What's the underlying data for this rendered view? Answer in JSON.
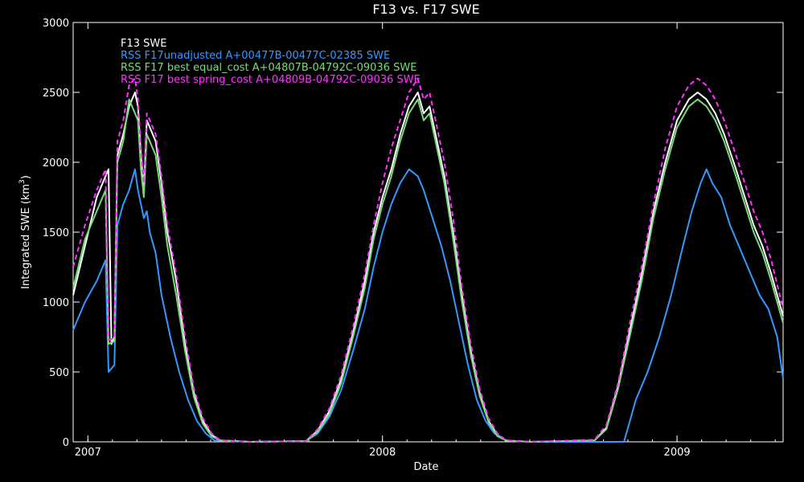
{
  "chart_data": {
    "type": "line",
    "title": "F13 vs. F17 SWE",
    "xlabel": "Date",
    "ylabel_main": "Integrated SWE (km",
    "ylabel_sup": "3",
    "ylabel_close": ")",
    "xlim": [
      2006.95,
      2009.36
    ],
    "ylim": [
      0,
      3000
    ],
    "x_ticks": [
      2007,
      2008,
      2009
    ],
    "x_tick_labels": [
      "2007",
      "2008",
      "2009"
    ],
    "y_ticks": [
      0,
      500,
      1000,
      1500,
      2000,
      2500,
      3000
    ],
    "y_tick_labels": [
      "0",
      "500",
      "1000",
      "1500",
      "2000",
      "2500",
      "3000"
    ],
    "grid": false,
    "legend_position": "top-left",
    "series": [
      {
        "name": "F13 SWE",
        "color": "#ffffff",
        "dashed": false,
        "points": [
          [
            2006.95,
            1050
          ],
          [
            2006.99,
            1400
          ],
          [
            2007.03,
            1750
          ],
          [
            2007.06,
            1900
          ],
          [
            2007.07,
            1950
          ],
          [
            2007.08,
            700
          ],
          [
            2007.09,
            750
          ],
          [
            2007.1,
            2050
          ],
          [
            2007.12,
            2200
          ],
          [
            2007.14,
            2400
          ],
          [
            2007.16,
            2500
          ],
          [
            2007.17,
            2400
          ],
          [
            2007.18,
            2050
          ],
          [
            2007.19,
            1800
          ],
          [
            2007.2,
            2300
          ],
          [
            2007.21,
            2250
          ],
          [
            2007.23,
            2150
          ],
          [
            2007.25,
            1850
          ],
          [
            2007.27,
            1500
          ],
          [
            2007.3,
            1150
          ],
          [
            2007.33,
            700
          ],
          [
            2007.36,
            350
          ],
          [
            2007.39,
            150
          ],
          [
            2007.42,
            50
          ],
          [
            2007.45,
            10
          ],
          [
            2007.55,
            0
          ],
          [
            2007.74,
            5
          ],
          [
            2007.78,
            80
          ],
          [
            2007.82,
            220
          ],
          [
            2007.86,
            450
          ],
          [
            2007.9,
            780
          ],
          [
            2007.94,
            1150
          ],
          [
            2007.97,
            1500
          ],
          [
            2008.0,
            1750
          ],
          [
            2008.03,
            1950
          ],
          [
            2008.06,
            2200
          ],
          [
            2008.09,
            2400
          ],
          [
            2008.12,
            2500
          ],
          [
            2008.14,
            2350
          ],
          [
            2008.16,
            2400
          ],
          [
            2008.18,
            2200
          ],
          [
            2008.21,
            1900
          ],
          [
            2008.24,
            1500
          ],
          [
            2008.27,
            1050
          ],
          [
            2008.3,
            650
          ],
          [
            2008.33,
            350
          ],
          [
            2008.36,
            150
          ],
          [
            2008.39,
            50
          ],
          [
            2008.42,
            10
          ],
          [
            2008.5,
            0
          ],
          [
            2008.72,
            10
          ],
          [
            2008.76,
            100
          ],
          [
            2008.8,
            400
          ],
          [
            2008.84,
            800
          ],
          [
            2008.88,
            1200
          ],
          [
            2008.92,
            1650
          ],
          [
            2008.96,
            2000
          ],
          [
            2009.0,
            2300
          ],
          [
            2009.04,
            2450
          ],
          [
            2009.07,
            2500
          ],
          [
            2009.1,
            2450
          ],
          [
            2009.13,
            2350
          ],
          [
            2009.16,
            2200
          ],
          [
            2009.2,
            1950
          ],
          [
            2009.23,
            1750
          ],
          [
            2009.26,
            1550
          ],
          [
            2009.29,
            1400
          ],
          [
            2009.32,
            1200
          ],
          [
            2009.36,
            900
          ]
        ]
      },
      {
        "name": "RSS F17unadjusted A+00477B-00477C-02385 SWE",
        "color": "#3399ff",
        "dashed": false,
        "points": [
          [
            2006.95,
            800
          ],
          [
            2006.99,
            1000
          ],
          [
            2007.03,
            1150
          ],
          [
            2007.06,
            1300
          ],
          [
            2007.07,
            500
          ],
          [
            2007.09,
            550
          ],
          [
            2007.1,
            1550
          ],
          [
            2007.12,
            1700
          ],
          [
            2007.14,
            1800
          ],
          [
            2007.16,
            1950
          ],
          [
            2007.17,
            1800
          ],
          [
            2007.18,
            1700
          ],
          [
            2007.19,
            1600
          ],
          [
            2007.2,
            1650
          ],
          [
            2007.21,
            1500
          ],
          [
            2007.23,
            1350
          ],
          [
            2007.25,
            1050
          ],
          [
            2007.28,
            750
          ],
          [
            2007.31,
            500
          ],
          [
            2007.34,
            300
          ],
          [
            2007.37,
            150
          ],
          [
            2007.4,
            60
          ],
          [
            2007.43,
            10
          ],
          [
            2007.55,
            0
          ],
          [
            2007.74,
            5
          ],
          [
            2007.78,
            60
          ],
          [
            2007.82,
            180
          ],
          [
            2007.86,
            370
          ],
          [
            2007.9,
            650
          ],
          [
            2007.94,
            950
          ],
          [
            2007.97,
            1250
          ],
          [
            2008.0,
            1500
          ],
          [
            2008.03,
            1700
          ],
          [
            2008.06,
            1850
          ],
          [
            2008.09,
            1950
          ],
          [
            2008.12,
            1900
          ],
          [
            2008.14,
            1800
          ],
          [
            2008.17,
            1600
          ],
          [
            2008.2,
            1400
          ],
          [
            2008.23,
            1150
          ],
          [
            2008.26,
            850
          ],
          [
            2008.29,
            550
          ],
          [
            2008.32,
            300
          ],
          [
            2008.35,
            150
          ],
          [
            2008.38,
            60
          ],
          [
            2008.42,
            10
          ],
          [
            2008.5,
            0
          ],
          [
            2008.82,
            0
          ],
          [
            2008.84,
            150
          ],
          [
            2008.86,
            300
          ],
          [
            2008.9,
            500
          ],
          [
            2008.94,
            750
          ],
          [
            2008.98,
            1050
          ],
          [
            2009.02,
            1400
          ],
          [
            2009.05,
            1650
          ],
          [
            2009.08,
            1850
          ],
          [
            2009.1,
            1950
          ],
          [
            2009.12,
            1850
          ],
          [
            2009.15,
            1750
          ],
          [
            2009.18,
            1550
          ],
          [
            2009.22,
            1350
          ],
          [
            2009.25,
            1200
          ],
          [
            2009.28,
            1050
          ],
          [
            2009.31,
            950
          ],
          [
            2009.34,
            750
          ],
          [
            2009.36,
            450
          ]
        ]
      },
      {
        "name": "RSS F17 best equal_cost A+04807B-04792C-09036 SWE",
        "color": "#77dd77",
        "dashed": false,
        "points": [
          [
            2006.95,
            1100
          ],
          [
            2006.99,
            1450
          ],
          [
            2007.03,
            1650
          ],
          [
            2007.06,
            1800
          ],
          [
            2007.07,
            700
          ],
          [
            2007.09,
            720
          ],
          [
            2007.1,
            2000
          ],
          [
            2007.12,
            2150
          ],
          [
            2007.14,
            2450
          ],
          [
            2007.16,
            2350
          ],
          [
            2007.17,
            2300
          ],
          [
            2007.18,
            1950
          ],
          [
            2007.19,
            1750
          ],
          [
            2007.2,
            2200
          ],
          [
            2007.21,
            2150
          ],
          [
            2007.23,
            2050
          ],
          [
            2007.25,
            1750
          ],
          [
            2007.27,
            1400
          ],
          [
            2007.3,
            1050
          ],
          [
            2007.33,
            650
          ],
          [
            2007.36,
            320
          ],
          [
            2007.39,
            130
          ],
          [
            2007.42,
            40
          ],
          [
            2007.45,
            10
          ],
          [
            2007.55,
            0
          ],
          [
            2007.74,
            5
          ],
          [
            2007.78,
            70
          ],
          [
            2007.82,
            200
          ],
          [
            2007.86,
            420
          ],
          [
            2007.9,
            750
          ],
          [
            2007.94,
            1100
          ],
          [
            2007.97,
            1450
          ],
          [
            2008.0,
            1700
          ],
          [
            2008.03,
            1900
          ],
          [
            2008.06,
            2150
          ],
          [
            2008.09,
            2350
          ],
          [
            2008.12,
            2450
          ],
          [
            2008.14,
            2300
          ],
          [
            2008.16,
            2350
          ],
          [
            2008.18,
            2150
          ],
          [
            2008.21,
            1850
          ],
          [
            2008.24,
            1450
          ],
          [
            2008.27,
            1000
          ],
          [
            2008.3,
            620
          ],
          [
            2008.33,
            330
          ],
          [
            2008.36,
            140
          ],
          [
            2008.39,
            40
          ],
          [
            2008.42,
            10
          ],
          [
            2008.5,
            0
          ],
          [
            2008.72,
            10
          ],
          [
            2008.76,
            90
          ],
          [
            2008.8,
            380
          ],
          [
            2008.84,
            760
          ],
          [
            2008.88,
            1150
          ],
          [
            2008.92,
            1600
          ],
          [
            2008.96,
            1950
          ],
          [
            2009.0,
            2250
          ],
          [
            2009.04,
            2400
          ],
          [
            2009.07,
            2450
          ],
          [
            2009.1,
            2400
          ],
          [
            2009.13,
            2300
          ],
          [
            2009.16,
            2150
          ],
          [
            2009.2,
            1900
          ],
          [
            2009.23,
            1700
          ],
          [
            2009.26,
            1500
          ],
          [
            2009.29,
            1350
          ],
          [
            2009.32,
            1150
          ],
          [
            2009.36,
            850
          ]
        ]
      },
      {
        "name": "RSS F17 best spring_cost A+04809B-04792C-09036 SWE",
        "color": "#ff33ff",
        "dashed": true,
        "points": [
          [
            2006.95,
            1250
          ],
          [
            2006.99,
            1550
          ],
          [
            2007.03,
            1800
          ],
          [
            2007.06,
            1950
          ],
          [
            2007.07,
            730
          ],
          [
            2007.09,
            740
          ],
          [
            2007.1,
            2150
          ],
          [
            2007.12,
            2300
          ],
          [
            2007.14,
            2550
          ],
          [
            2007.16,
            2600
          ],
          [
            2007.17,
            2450
          ],
          [
            2007.18,
            2100
          ],
          [
            2007.19,
            1850
          ],
          [
            2007.2,
            2350
          ],
          [
            2007.21,
            2300
          ],
          [
            2007.23,
            2200
          ],
          [
            2007.25,
            1900
          ],
          [
            2007.27,
            1550
          ],
          [
            2007.3,
            1200
          ],
          [
            2007.33,
            750
          ],
          [
            2007.36,
            380
          ],
          [
            2007.39,
            170
          ],
          [
            2007.42,
            60
          ],
          [
            2007.45,
            10
          ],
          [
            2007.55,
            0
          ],
          [
            2007.74,
            5
          ],
          [
            2007.78,
            90
          ],
          [
            2007.82,
            240
          ],
          [
            2007.86,
            480
          ],
          [
            2007.9,
            820
          ],
          [
            2007.94,
            1200
          ],
          [
            2007.97,
            1550
          ],
          [
            2008.0,
            1850
          ],
          [
            2008.03,
            2100
          ],
          [
            2008.06,
            2300
          ],
          [
            2008.09,
            2500
          ],
          [
            2008.12,
            2600
          ],
          [
            2008.14,
            2450
          ],
          [
            2008.16,
            2500
          ],
          [
            2008.18,
            2300
          ],
          [
            2008.21,
            2000
          ],
          [
            2008.24,
            1600
          ],
          [
            2008.27,
            1100
          ],
          [
            2008.3,
            700
          ],
          [
            2008.33,
            380
          ],
          [
            2008.36,
            170
          ],
          [
            2008.39,
            60
          ],
          [
            2008.42,
            10
          ],
          [
            2008.5,
            0
          ],
          [
            2008.72,
            15
          ],
          [
            2008.76,
            120
          ],
          [
            2008.8,
            420
          ],
          [
            2008.84,
            850
          ],
          [
            2008.88,
            1250
          ],
          [
            2008.92,
            1700
          ],
          [
            2008.96,
            2100
          ],
          [
            2009.0,
            2400
          ],
          [
            2009.04,
            2550
          ],
          [
            2009.07,
            2600
          ],
          [
            2009.1,
            2550
          ],
          [
            2009.13,
            2450
          ],
          [
            2009.16,
            2300
          ],
          [
            2009.2,
            2050
          ],
          [
            2009.23,
            1850
          ],
          [
            2009.26,
            1650
          ],
          [
            2009.29,
            1500
          ],
          [
            2009.32,
            1300
          ],
          [
            2009.36,
            950
          ]
        ]
      }
    ]
  }
}
